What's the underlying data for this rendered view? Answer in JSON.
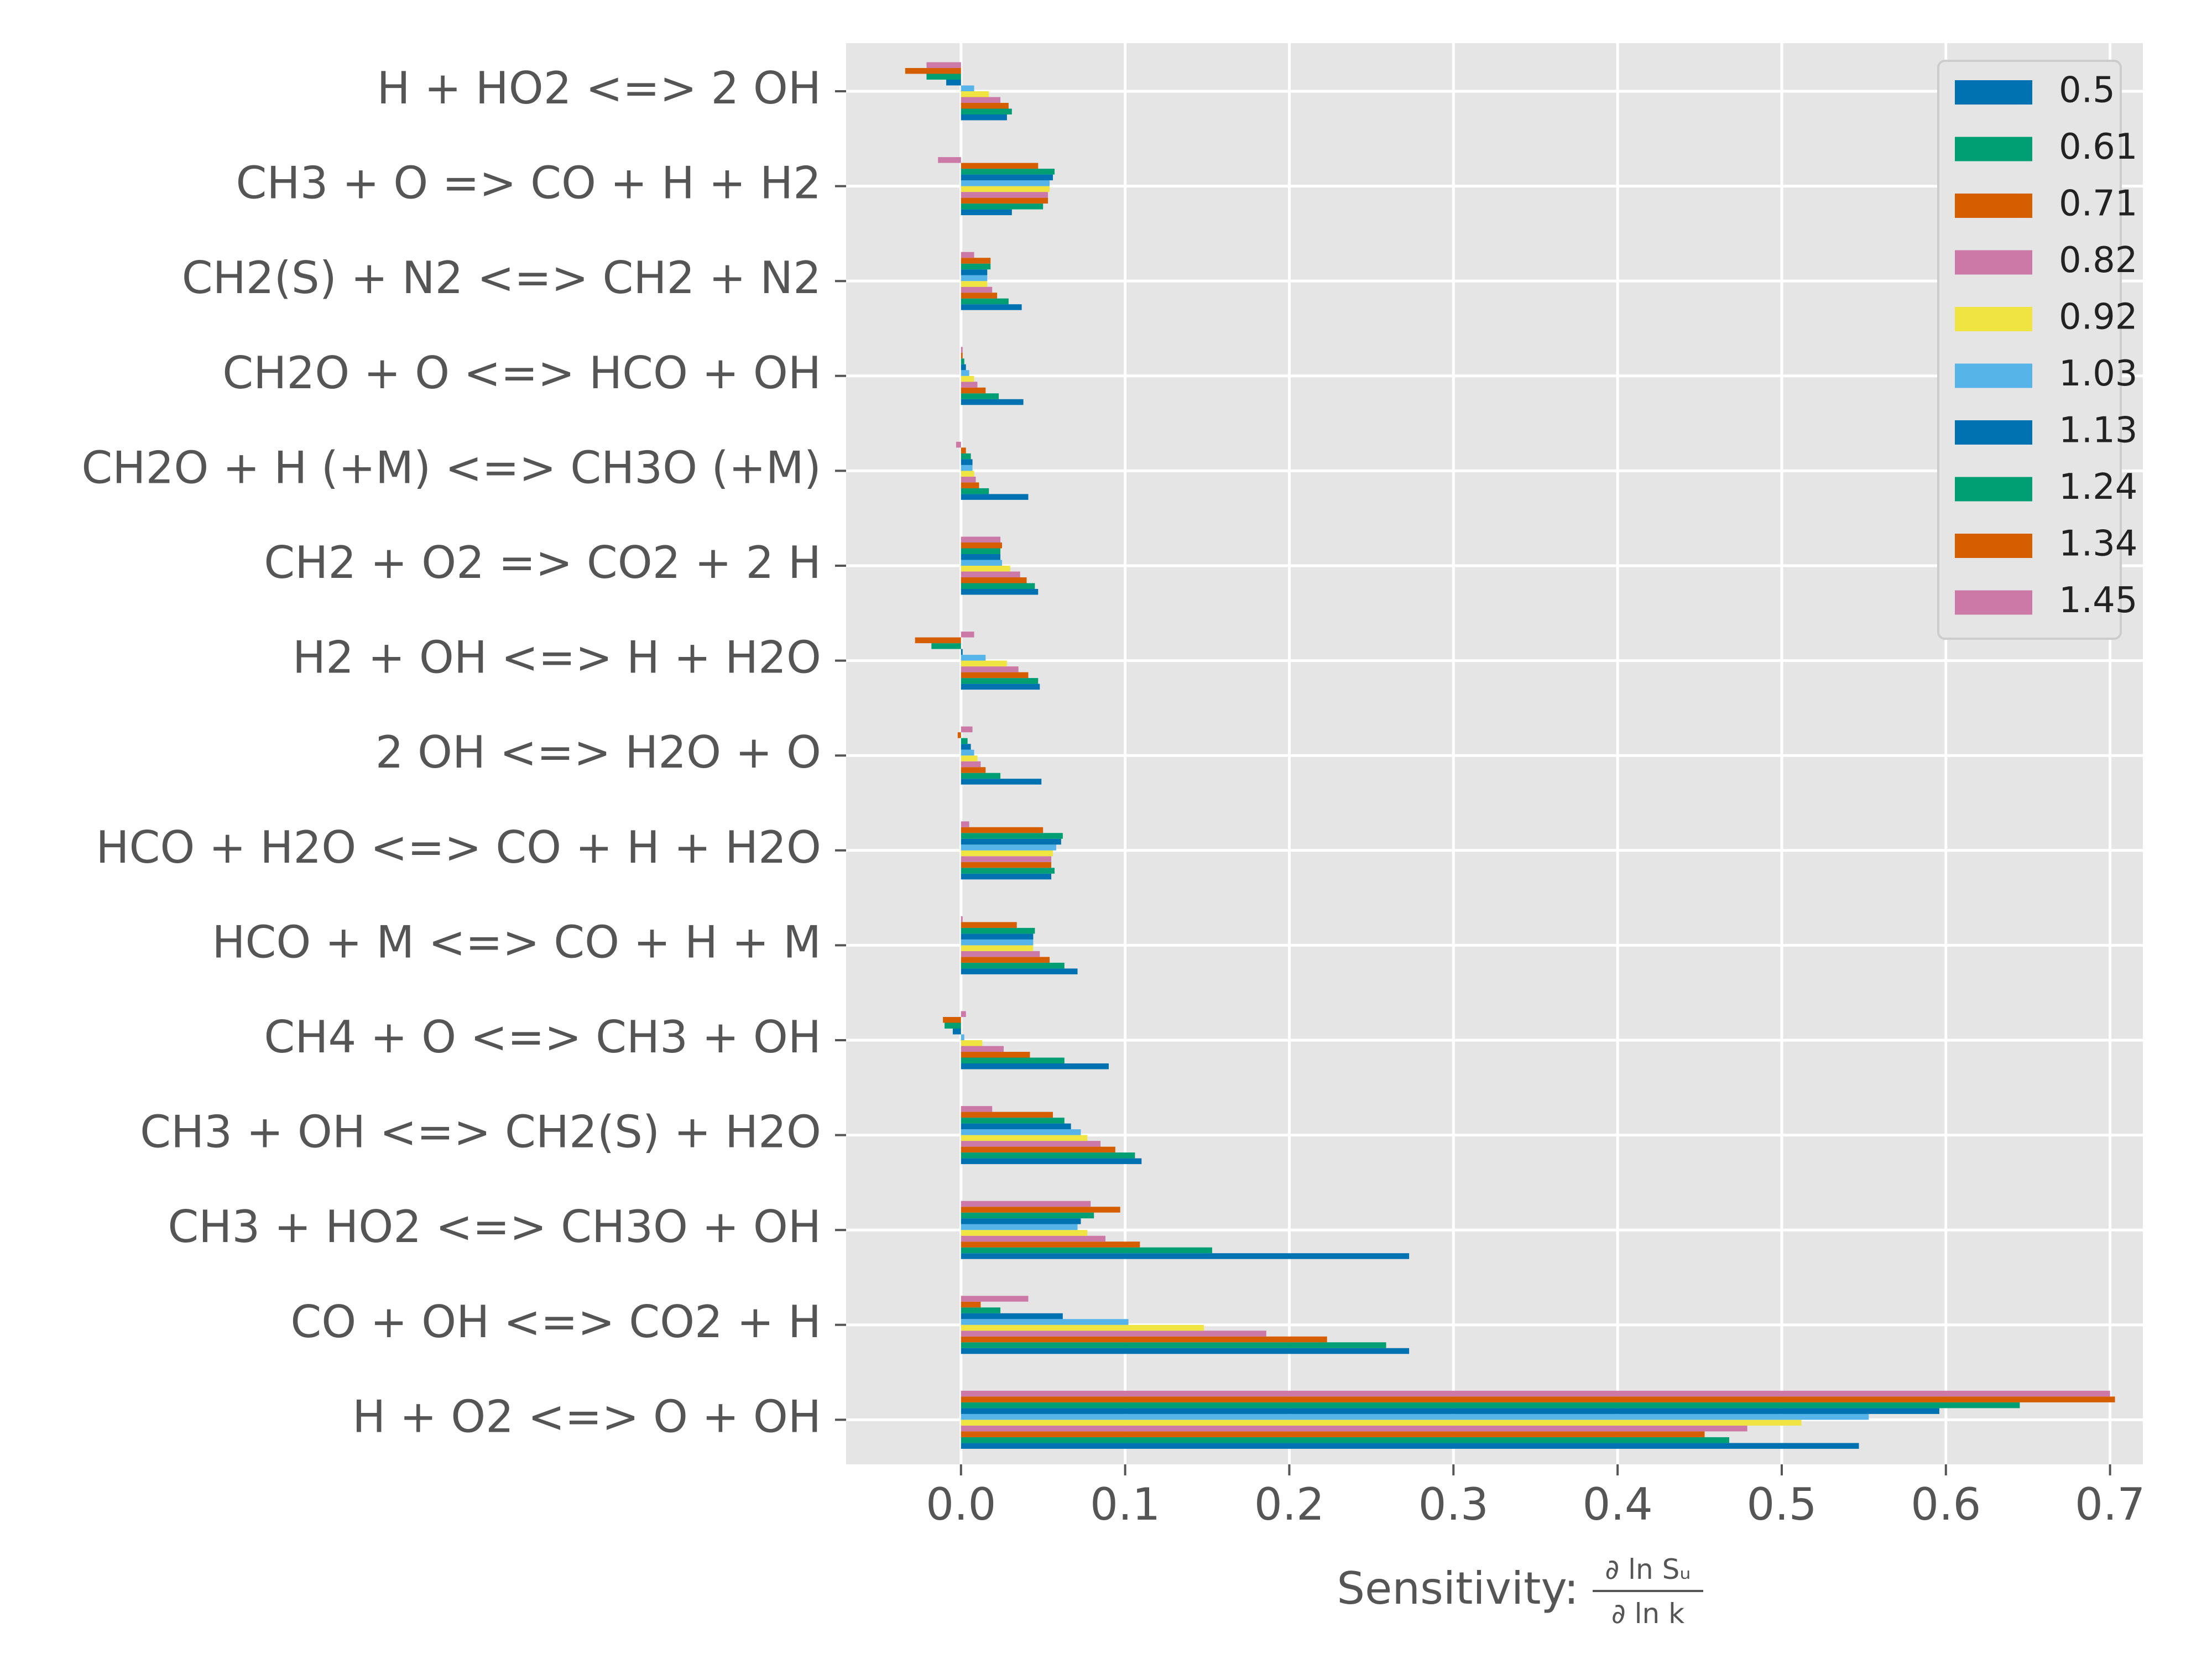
{
  "chart_data": {
    "type": "bar",
    "orientation": "horizontal",
    "xlabel": "Sensitivity:",
    "xlabel_fraction": {
      "numerator": "∂ ln Sᵤ",
      "denominator": "∂ ln k"
    },
    "xlim": [
      -0.07,
      0.72
    ],
    "xticks": [
      0.0,
      0.1,
      0.2,
      0.3,
      0.4,
      0.5,
      0.6,
      0.7
    ],
    "xtick_labels": [
      "0.0",
      "0.1",
      "0.2",
      "0.3",
      "0.4",
      "0.5",
      "0.6",
      "0.7"
    ],
    "grid": true,
    "legend_position": "top-right",
    "categories": [
      "H + HO2 <=> 2 OH",
      "CH3 + O => CO + H + H2",
      "CH2(S) + N2 <=> CH2 + N2",
      "CH2O + O <=> HCO + OH",
      "CH2O + H (+M) <=> CH3O (+M)",
      "CH2 + O2 => CO2 + 2 H",
      "H2 + OH <=> H + H2O",
      "2 OH <=> H2O + O",
      "HCO + H2O <=> CO + H + H2O",
      "HCO + M <=> CO + H + M",
      "CH4 + O <=> CH3 + OH",
      "CH3 + OH <=> CH2(S) + H2O",
      "CH3 + HO2 <=> CH3O + OH",
      "CO + OH <=> CO2 + H",
      "H + O2 <=> O + OH"
    ],
    "series": [
      {
        "name": "0.5",
        "color": "#0072B2",
        "values": [
          0.028,
          0.031,
          0.037,
          0.038,
          0.041,
          0.047,
          0.048,
          0.049,
          0.055,
          0.071,
          0.09,
          0.11,
          0.273,
          0.273,
          0.547
        ]
      },
      {
        "name": "0.61",
        "color": "#009E73",
        "values": [
          0.031,
          0.05,
          0.029,
          0.023,
          0.017,
          0.045,
          0.047,
          0.024,
          0.057,
          0.063,
          0.063,
          0.106,
          0.153,
          0.259,
          0.468
        ]
      },
      {
        "name": "0.71",
        "color": "#D55E00",
        "values": [
          0.029,
          0.053,
          0.022,
          0.015,
          0.011,
          0.04,
          0.041,
          0.015,
          0.055,
          0.054,
          0.042,
          0.094,
          0.109,
          0.223,
          0.453
        ]
      },
      {
        "name": "0.82",
        "color": "#CC79A7",
        "values": [
          0.024,
          0.053,
          0.019,
          0.01,
          0.009,
          0.036,
          0.035,
          0.012,
          0.055,
          0.048,
          0.026,
          0.085,
          0.088,
          0.186,
          0.479
        ]
      },
      {
        "name": "0.92",
        "color": "#F0E442",
        "values": [
          0.017,
          0.054,
          0.016,
          0.008,
          0.008,
          0.03,
          0.028,
          0.01,
          0.056,
          0.044,
          0.013,
          0.077,
          0.077,
          0.148,
          0.512
        ]
      },
      {
        "name": "1.03",
        "color": "#56B4E9",
        "values": [
          0.008,
          0.054,
          0.016,
          0.005,
          0.007,
          0.025,
          0.015,
          0.008,
          0.058,
          0.044,
          0.002,
          0.073,
          0.071,
          0.102,
          0.553
        ]
      },
      {
        "name": "1.13",
        "color": "#0072B2",
        "values": [
          -0.009,
          0.056,
          0.016,
          0.003,
          0.007,
          0.024,
          0.001,
          0.006,
          0.061,
          0.044,
          -0.005,
          0.067,
          0.073,
          0.062,
          0.596
        ]
      },
      {
        "name": "1.24",
        "color": "#009E73",
        "values": [
          -0.021,
          0.057,
          0.018,
          0.002,
          0.006,
          0.024,
          -0.018,
          0.004,
          0.062,
          0.045,
          -0.01,
          0.063,
          0.081,
          0.024,
          0.645
        ]
      },
      {
        "name": "1.34",
        "color": "#D55E00",
        "values": [
          -0.034,
          0.047,
          0.018,
          0.001,
          0.003,
          0.025,
          -0.028,
          -0.002,
          0.05,
          0.034,
          -0.011,
          0.056,
          0.097,
          0.012,
          0.703
        ]
      },
      {
        "name": "1.45",
        "color": "#CC79A7",
        "values": [
          -0.021,
          -0.014,
          0.008,
          0.001,
          -0.003,
          0.024,
          0.008,
          0.007,
          0.005,
          0.001,
          0.003,
          0.019,
          0.079,
          0.041,
          0.7
        ]
      }
    ]
  }
}
